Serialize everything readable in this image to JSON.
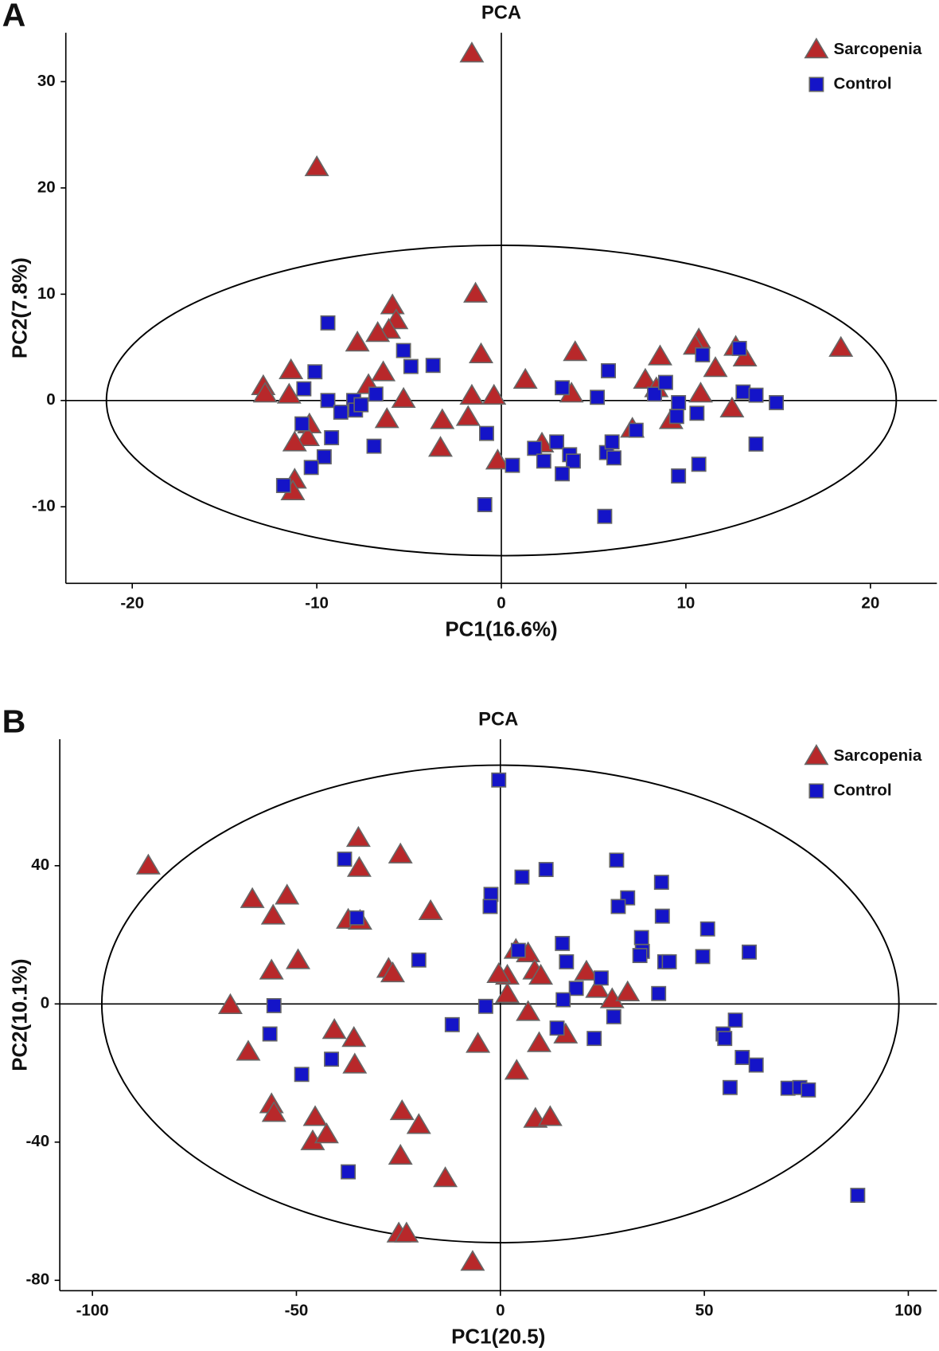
{
  "chart_data": [
    {
      "type": "scatter",
      "panel_label": "A",
      "title": "PCA",
      "x_label": "PC1(16.6%)",
      "y_label": "PC2(7.8%)",
      "xlim": [
        -23.6,
        23.6
      ],
      "ylim": [
        -17.2,
        34.6
      ],
      "xticks": [
        -20,
        -10,
        0,
        10,
        20
      ],
      "yticks": [
        -10,
        0,
        10,
        20,
        30
      ],
      "legend": "upper right",
      "ellipse": {
        "center": [
          0,
          0
        ],
        "radii": [
          21.4,
          14.6
        ]
      },
      "series": [
        {
          "name": "Sarcopenia",
          "color": "#b8282a",
          "marker": "triangle",
          "x": [
            -1.6,
            -10.0,
            -1.4,
            -5.9,
            -5.7,
            -6.1,
            -6.7,
            -7.8,
            -1.1,
            4.0,
            10.7,
            10.5,
            12.7,
            13.2,
            18.4,
            8.6,
            11.6,
            -6.4,
            -7.2,
            -11.4,
            -12.9,
            -12.8,
            -11.5,
            1.3,
            7.8,
            8.4,
            -1.6,
            -0.4,
            3.8,
            -5.3,
            10.8,
            12.5,
            -6.2,
            -3.2,
            -1.8,
            -10.4,
            -10.5,
            -11.2,
            2.2,
            7.1,
            9.2,
            -3.3,
            -0.2,
            -11.2,
            -11.3
          ],
          "values": [
            32.6,
            21.9,
            10.0,
            8.9,
            7.5,
            6.6,
            6.3,
            5.4,
            4.3,
            4.5,
            5.7,
            5.1,
            5.0,
            4.0,
            4.9,
            4.1,
            3.0,
            2.6,
            1.4,
            2.8,
            1.3,
            0.6,
            0.5,
            1.9,
            1.9,
            1.1,
            0.4,
            0.4,
            0.6,
            0.1,
            0.6,
            -0.8,
            -1.8,
            -1.9,
            -1.6,
            -2.3,
            -3.5,
            -4.0,
            -4.1,
            -2.7,
            -1.9,
            -4.5,
            -5.7,
            -7.5,
            -8.6
          ]
        },
        {
          "name": "Control",
          "color": "#1414c8",
          "marker": "square",
          "x": [
            -9.4,
            -5.3,
            -4.9,
            -3.7,
            -10.1,
            -10.7,
            -9.4,
            -8.0,
            -6.8,
            -8.7,
            -7.9,
            -7.6,
            -10.8,
            -9.2,
            -9.6,
            -10.3,
            -11.8,
            -6.9,
            -0.8,
            -0.9,
            0.6,
            1.8,
            2.3,
            3.0,
            3.7,
            3.9,
            3.3,
            3.3,
            5.2,
            5.8,
            5.7,
            6.0,
            6.1,
            5.6,
            7.3,
            8.3,
            8.9,
            9.6,
            9.5,
            10.6,
            9.6,
            10.7,
            10.9,
            12.9,
            13.1,
            13.8,
            14.9,
            13.8
          ],
          "values": [
            7.3,
            4.7,
            3.2,
            3.3,
            2.7,
            1.1,
            0.0,
            0.0,
            0.6,
            -1.1,
            -0.9,
            -0.4,
            -2.2,
            -3.5,
            -5.3,
            -6.3,
            -8.0,
            -4.3,
            -3.1,
            -9.8,
            -6.1,
            -4.5,
            -5.7,
            -3.9,
            -5.1,
            -5.7,
            -6.9,
            1.2,
            0.3,
            2.8,
            -4.9,
            -3.9,
            -5.4,
            -10.9,
            -2.8,
            0.6,
            1.7,
            -0.2,
            -1.5,
            -1.2,
            -7.1,
            -6.0,
            4.3,
            4.9,
            0.8,
            0.5,
            -0.2,
            -4.1
          ]
        }
      ]
    },
    {
      "type": "scatter",
      "panel_label": "B",
      "title": "PCA",
      "x_label": "PC1(20.5)",
      "y_label": "PC2(10.1%)",
      "xlim": [
        -108,
        107
      ],
      "ylim": [
        -83,
        76.6
      ],
      "xticks": [
        -100,
        -50,
        0,
        50,
        100
      ],
      "yticks": [
        -80,
        -40,
        0,
        40
      ],
      "legend": "upper right",
      "ellipse": {
        "center": [
          0,
          0
        ],
        "radii": [
          97.7,
          69.1
        ]
      },
      "series": [
        {
          "name": "Sarcopenia",
          "color": "#b8282a",
          "marker": "triangle",
          "x": [
            -86.3,
            -60.8,
            -52.3,
            -55.7,
            -34.8,
            -34.6,
            -24.5,
            -37.3,
            -34.4,
            -17.1,
            -49.6,
            -56.1,
            -27.4,
            -26.4,
            -66.2,
            -61.8,
            -40.7,
            -35.9,
            -35.7,
            -5.5,
            -56.1,
            -55.5,
            -45.4,
            -46.0,
            -42.6,
            -24.1,
            -20.0,
            -24.5,
            -13.5,
            -24.9,
            -23.0,
            -6.8,
            3.8,
            6.8,
            1.7,
            8.4,
            9.9,
            1.7,
            6.8,
            16.0,
            9.5,
            4.0,
            8.6,
            12.2,
            21.1,
            23.8,
            27.4,
            31.2,
            -0.4
          ],
          "values": [
            39.9,
            30.2,
            31.2,
            25.4,
            47.9,
            39.2,
            43.1,
            24.2,
            23.9,
            26.7,
            12.5,
            9.5,
            10.0,
            8.7,
            -0.5,
            -14.0,
            -7.7,
            -10.0,
            -17.7,
            -11.7,
            -29.2,
            -31.7,
            -32.9,
            -39.9,
            -37.9,
            -31.2,
            -35.2,
            -44.1,
            -50.6,
            -66.6,
            -66.6,
            -74.8,
            15.5,
            14.5,
            8.0,
            9.5,
            8.0,
            2.7,
            -2.5,
            -9.0,
            -11.5,
            -19.5,
            -33.4,
            -32.9,
            9.2,
            4.2,
            1.2,
            3.2,
            8.5
          ]
        },
        {
          "name": "Control",
          "color": "#1414c8",
          "marker": "square",
          "x": [
            -0.4,
            -38.2,
            -35.2,
            5.3,
            11.2,
            -2.3,
            -2.5,
            28.5,
            31.2,
            28.9,
            39.5,
            39.7,
            34.6,
            34.8,
            34.2,
            40.3,
            41.4,
            50.8,
            49.6,
            61.0,
            15.2,
            16.2,
            4.4,
            -20.0,
            18.6,
            24.7,
            15.4,
            38.8,
            -3.6,
            -55.5,
            -56.5,
            -48.7,
            -41.4,
            -11.8,
            13.9,
            23.0,
            27.8,
            54.6,
            55.0,
            57.6,
            59.3,
            62.7,
            56.3,
            70.5,
            73.4,
            75.5,
            -37.3,
            87.6
          ],
          "values": [
            64.8,
            41.9,
            24.9,
            36.7,
            38.9,
            31.7,
            28.2,
            41.6,
            30.7,
            28.2,
            35.2,
            25.4,
            19.2,
            15.2,
            14.0,
            12.2,
            12.2,
            21.7,
            13.7,
            15.0,
            17.5,
            12.2,
            15.5,
            12.7,
            4.5,
            7.5,
            1.2,
            3.0,
            -0.7,
            -0.5,
            -8.7,
            -20.4,
            -16.0,
            -6.0,
            -7.0,
            -10.0,
            -3.7,
            -8.7,
            -10.0,
            -4.7,
            -15.5,
            -17.7,
            -24.2,
            -24.4,
            -24.2,
            -24.9,
            -48.6,
            -55.4
          ]
        }
      ]
    }
  ]
}
